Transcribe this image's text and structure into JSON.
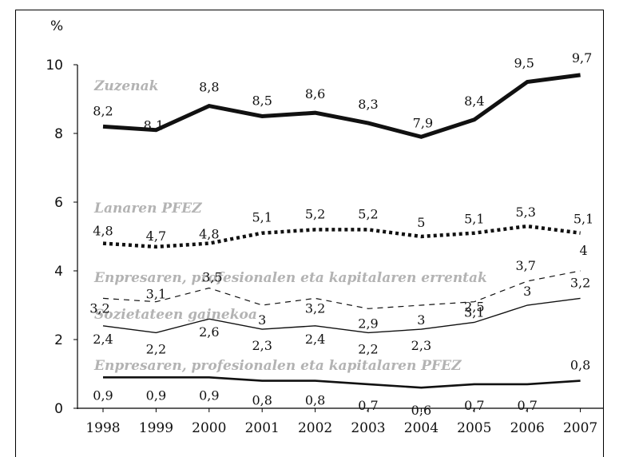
{
  "chart_data": {
    "type": "line",
    "ylabel": "%",
    "xlabel": "",
    "ylim": [
      0,
      10
    ],
    "yticks": [
      "0",
      "2",
      "4",
      "6",
      "8",
      "10"
    ],
    "categories": [
      "1998",
      "1999",
      "2000",
      "2001",
      "2002",
      "2003",
      "2004",
      "2005",
      "2006",
      "2007"
    ],
    "series": [
      {
        "name": "Zuzenak",
        "style": "thick-solid",
        "values": [
          8.2,
          8.1,
          8.8,
          8.5,
          8.6,
          8.3,
          7.9,
          8.4,
          9.5,
          9.7
        ],
        "labels": [
          "8,2",
          "8,1",
          "8,8",
          "8,5",
          "8,6",
          "8,3",
          "7,9",
          "8,4",
          "9,5",
          "9,7"
        ]
      },
      {
        "name": "Lanaren PFEZ",
        "style": "thick-dotted",
        "values": [
          4.8,
          4.7,
          4.8,
          5.1,
          5.2,
          5.2,
          5.0,
          5.1,
          5.3,
          5.1
        ],
        "labels": [
          "4,8",
          "4,7",
          "4,8",
          "5,1",
          "5,2",
          "5,2",
          "5",
          "5,1",
          "5,3",
          "5,1"
        ]
      },
      {
        "name": "Enpresaren, profesionalen eta kapitalaren errentak",
        "style": "thin-dashed",
        "values": [
          3.2,
          3.1,
          3.5,
          3.0,
          3.2,
          2.9,
          3.0,
          3.1,
          3.7,
          4.0
        ],
        "labels": [
          "3,2",
          "3,1",
          "3,5",
          "3",
          "3,2",
          "2,9",
          "3",
          "3,1",
          "3,7",
          "4"
        ]
      },
      {
        "name": "Sozietateen gainekoa",
        "style": "thin-solid",
        "values": [
          2.4,
          2.2,
          2.6,
          2.3,
          2.4,
          2.2,
          2.3,
          2.5,
          3.0,
          3.2
        ],
        "labels": [
          "2,4",
          "2,2",
          "2,6",
          "2,3",
          "2,4",
          "2,2",
          "2,3",
          "2,5",
          "3",
          "3,2"
        ]
      },
      {
        "name": "Enpresaren, profesionalen eta kapitalaren PFEZ",
        "style": "medium-solid",
        "values": [
          0.9,
          0.9,
          0.9,
          0.8,
          0.8,
          0.7,
          0.6,
          0.7,
          0.7,
          0.8
        ],
        "labels": [
          "0,9",
          "0,9",
          "0,9",
          "0,8",
          "0,8",
          "0,7",
          "0,6",
          "0,7",
          "0,7",
          "0,8"
        ]
      }
    ]
  }
}
